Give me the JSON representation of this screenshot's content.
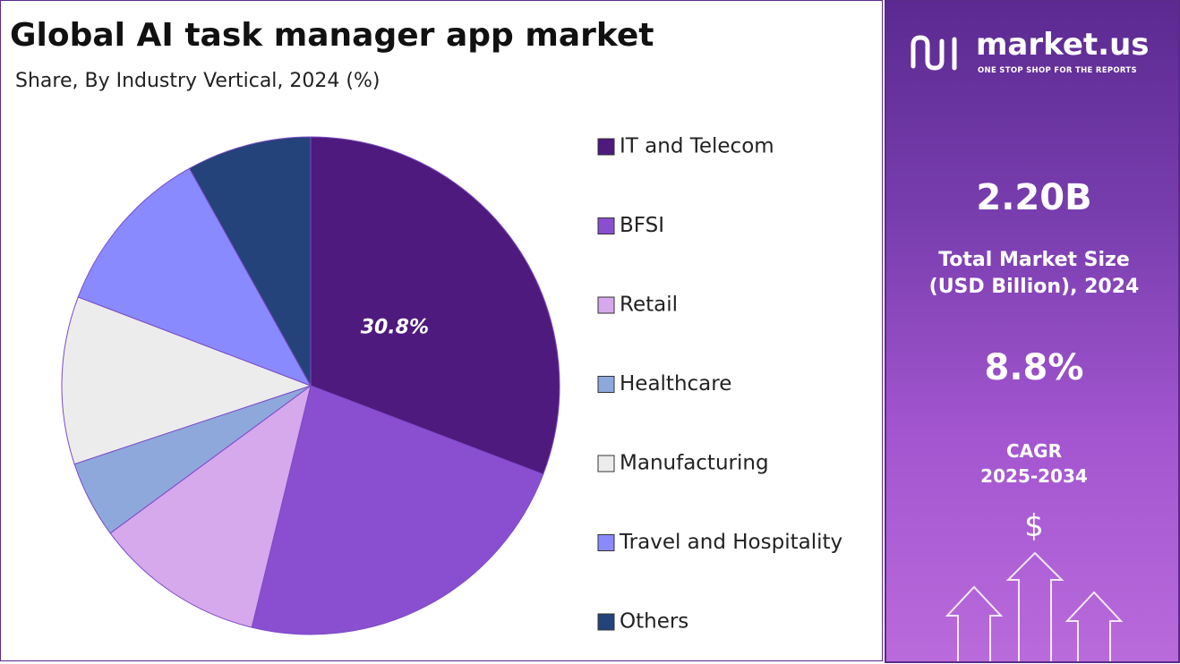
{
  "chart_data": {
    "type": "pie",
    "title": "Global AI task manager app market",
    "subtitle": "Share, By Industry Vertical, 2024 (%)",
    "categories": [
      "IT and Telecom",
      "BFSI",
      "Retail",
      "Healthcare",
      "Manufacturing",
      "Travel and Hospitality",
      "Others"
    ],
    "values": [
      30.8,
      23.0,
      11.1,
      5.0,
      10.9,
      11.1,
      8.1
    ],
    "value_labels": [
      "30.8%",
      null,
      null,
      null,
      null,
      null,
      null
    ],
    "colors": [
      "#4e1a7e",
      "#8a4fd0",
      "#d6a8ec",
      "#8ea8dc",
      "#ececec",
      "#8a8aff",
      "#24437a"
    ],
    "legend": "right"
  },
  "panel": {
    "brand": "market.us",
    "tagline": "ONE STOP SHOP FOR THE REPORTS",
    "market_size": "2.20B",
    "market_size_label_1": "Total Market Size",
    "market_size_label_2": "(USD Billion), 2024",
    "cagr": "8.8%",
    "cagr_label": "CAGR",
    "cagr_period": "2025-2034",
    "icon_symbol": "$"
  }
}
